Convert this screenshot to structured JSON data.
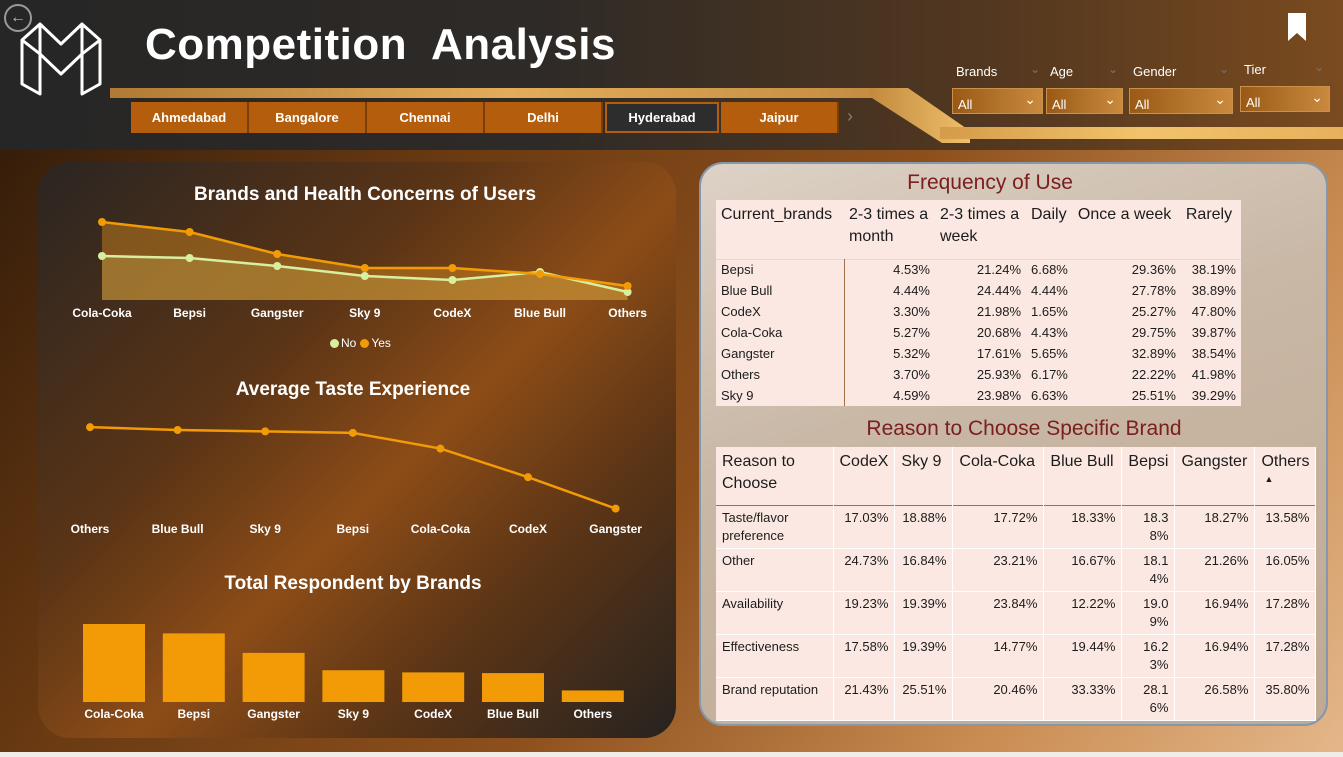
{
  "header": {
    "title": "Competition  Analysis",
    "tabs": [
      "Ahmedabad",
      "Bangalore",
      "Chennai",
      "Delhi",
      "Hyderabad",
      "Jaipur"
    ],
    "active_tab": "Hyderabad",
    "filters": [
      {
        "label": "Brands",
        "value": "All"
      },
      {
        "label": "Age",
        "value": "All"
      },
      {
        "label": "Gender",
        "value": "All"
      },
      {
        "label": "Tier",
        "value": "All"
      }
    ]
  },
  "colors": {
    "accent": "#f29b06",
    "no_series": "#d8efa0",
    "yes_series": "#f29b06",
    "table_title": "#7a1e1e"
  },
  "icons": [
    "back-icon",
    "logo-icon",
    "bookmark-icon",
    "chevron-down-icon",
    "chevron-right-icon",
    "sort-ascending-icon"
  ],
  "chart_data": [
    {
      "type": "area",
      "title": "Brands and Health Concerns of Users",
      "categories": [
        "Cola-Coka",
        "Bepsi",
        "Gangster",
        "Sky 9",
        "CodeX",
        "Blue Bull",
        "Others"
      ],
      "series": [
        {
          "name": "No",
          "values": [
            22,
            21,
            17,
            12,
            10,
            14,
            4
          ]
        },
        {
          "name": "Yes",
          "values": [
            39,
            34,
            23,
            16,
            16,
            13,
            7
          ]
        }
      ],
      "legend": "bottom-center",
      "grid": false
    },
    {
      "type": "line",
      "title": "Average Taste Experience",
      "categories": [
        "Others",
        "Blue Bull",
        "Sky 9",
        "Bepsi",
        "Cola-Coka",
        "CodeX",
        "Gangster"
      ],
      "values": [
        3.55,
        3.53,
        3.52,
        3.51,
        3.4,
        3.2,
        2.98
      ],
      "grid": false
    },
    {
      "type": "bar",
      "title": "Total Respondent by Brands",
      "categories": [
        "Cola-Coka",
        "Bepsi",
        "Gangster",
        "Sky 9",
        "CodeX",
        "Blue Bull",
        "Others"
      ],
      "values": [
        108,
        95,
        68,
        44,
        41,
        40,
        16
      ],
      "grid": false
    }
  ],
  "frequency_table": {
    "title": "Frequency of Use",
    "columns": [
      "Current_brands",
      "2-3 times a month",
      "2-3 times a week",
      "Daily",
      "Once a week",
      "Rarely"
    ],
    "rows": [
      [
        "Bepsi",
        "4.53%",
        "21.24%",
        "6.68%",
        "29.36%",
        "38.19%"
      ],
      [
        "Blue Bull",
        "4.44%",
        "24.44%",
        "4.44%",
        "27.78%",
        "38.89%"
      ],
      [
        "CodeX",
        "3.30%",
        "21.98%",
        "1.65%",
        "25.27%",
        "47.80%"
      ],
      [
        "Cola-Coka",
        "5.27%",
        "20.68%",
        "4.43%",
        "29.75%",
        "39.87%"
      ],
      [
        "Gangster",
        "5.32%",
        "17.61%",
        "5.65%",
        "32.89%",
        "38.54%"
      ],
      [
        "Others",
        "3.70%",
        "25.93%",
        "6.17%",
        "22.22%",
        "41.98%"
      ],
      [
        "Sky 9",
        "4.59%",
        "23.98%",
        "6.63%",
        "25.51%",
        "39.29%"
      ]
    ]
  },
  "reason_table": {
    "title": "Reason to Choose Specific Brand",
    "columns": [
      "Reason to Choose",
      "CodeX",
      "Sky 9",
      "Cola-Coka",
      "Blue Bull",
      "Bepsi",
      "Gangster",
      "Others"
    ],
    "rows": [
      [
        "Taste/flavor preference",
        "17.03%",
        "18.88%",
        "17.72%",
        "18.33%",
        "18.38%",
        "18.27%",
        "13.58%"
      ],
      [
        "Other",
        "24.73%",
        "16.84%",
        "23.21%",
        "16.67%",
        "18.14%",
        "21.26%",
        "16.05%"
      ],
      [
        "Availability",
        "19.23%",
        "19.39%",
        "23.84%",
        "12.22%",
        "19.09%",
        "16.94%",
        "17.28%"
      ],
      [
        "Effectiveness",
        "17.58%",
        "19.39%",
        "14.77%",
        "19.44%",
        "16.23%",
        "16.94%",
        "17.28%"
      ],
      [
        "Brand reputation",
        "21.43%",
        "25.51%",
        "20.46%",
        "33.33%",
        "28.16%",
        "26.58%",
        "35.80%"
      ]
    ]
  }
}
